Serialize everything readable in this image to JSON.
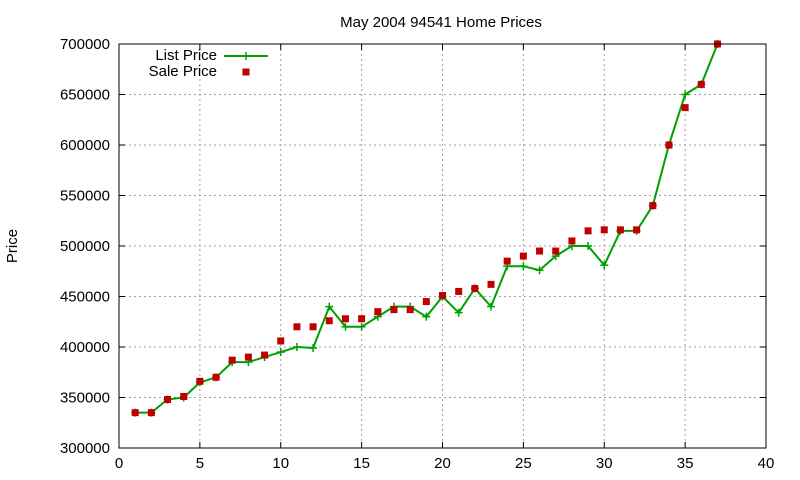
{
  "chart_data": {
    "type": "line",
    "title": "May 2004 94541 Home Prices",
    "xlabel": "",
    "ylabel": "Price",
    "xlim": [
      0,
      40
    ],
    "ylim": [
      300000,
      700000
    ],
    "xticks": [
      0,
      5,
      10,
      15,
      20,
      25,
      30,
      35,
      40
    ],
    "yticks": [
      300000,
      350000,
      400000,
      450000,
      500000,
      550000,
      600000,
      650000,
      700000
    ],
    "grid": true,
    "legend_position": "top-left",
    "series": [
      {
        "name": "List Price",
        "style": "line+cross",
        "color": "#00a000",
        "x": [
          1,
          2,
          3,
          4,
          5,
          6,
          7,
          8,
          9,
          10,
          11,
          12,
          13,
          14,
          15,
          16,
          17,
          18,
          19,
          20,
          21,
          22,
          23,
          24,
          25,
          26,
          27,
          28,
          29,
          30,
          31,
          32,
          33,
          34,
          35,
          36,
          37
        ],
        "y": [
          335000,
          335000,
          348000,
          350000,
          365000,
          370000,
          385000,
          385000,
          390000,
          395000,
          400000,
          399000,
          440000,
          420000,
          420000,
          430000,
          440000,
          440000,
          430000,
          450000,
          434000,
          458000,
          440000,
          480000,
          480000,
          476000,
          490000,
          500000,
          500000,
          481000,
          515000,
          515000,
          540000,
          600000,
          650000,
          660000,
          700000
        ]
      },
      {
        "name": "Sale Price",
        "style": "square",
        "color": "#c00000",
        "x": [
          1,
          2,
          3,
          4,
          5,
          6,
          7,
          8,
          9,
          10,
          11,
          12,
          13,
          14,
          15,
          16,
          17,
          18,
          19,
          20,
          21,
          22,
          23,
          24,
          25,
          26,
          27,
          28,
          29,
          30,
          31,
          32,
          33,
          34,
          35,
          36,
          37
        ],
        "y": [
          335000,
          335000,
          348000,
          351000,
          366000,
          370000,
          387000,
          390000,
          392000,
          406000,
          420000,
          420000,
          426000,
          428000,
          428000,
          435000,
          437000,
          437000,
          445000,
          451000,
          455000,
          458000,
          462000,
          485000,
          490000,
          495000,
          495000,
          505000,
          515000,
          516000,
          516000,
          516000,
          540000,
          600000,
          637000,
          660000,
          700000
        ]
      }
    ]
  }
}
